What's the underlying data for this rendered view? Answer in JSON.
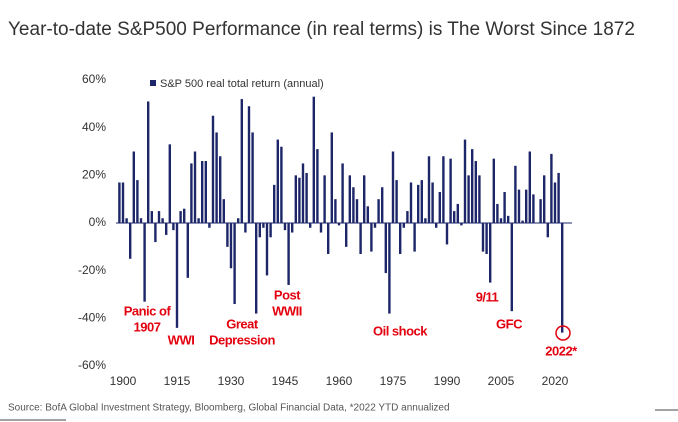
{
  "chart_data": {
    "type": "bar",
    "title": "Year-to-date S&P500 Performance (in real terms) is The Worst Since 1872",
    "legend": "S&P 500 real total return (annual)",
    "source": "Source: BofA Global Investment Strategy, Bloomberg, Global Financial Data, *2022 YTD annualized",
    "color": "#1c2668",
    "x": [
      1899,
      1900,
      1901,
      1902,
      1903,
      1904,
      1905,
      1906,
      1907,
      1908,
      1909,
      1910,
      1911,
      1912,
      1913,
      1914,
      1915,
      1916,
      1917,
      1918,
      1919,
      1920,
      1921,
      1922,
      1923,
      1924,
      1925,
      1926,
      1927,
      1928,
      1929,
      1930,
      1931,
      1932,
      1933,
      1934,
      1935,
      1936,
      1937,
      1938,
      1939,
      1940,
      1941,
      1942,
      1943,
      1944,
      1945,
      1946,
      1947,
      1948,
      1949,
      1950,
      1951,
      1952,
      1953,
      1954,
      1955,
      1956,
      1957,
      1958,
      1959,
      1960,
      1961,
      1962,
      1963,
      1964,
      1965,
      1966,
      1967,
      1968,
      1969,
      1970,
      1971,
      1972,
      1973,
      1974,
      1975,
      1976,
      1977,
      1978,
      1979,
      1980,
      1981,
      1982,
      1983,
      1984,
      1985,
      1986,
      1987,
      1988,
      1989,
      1990,
      1991,
      1992,
      1993,
      1994,
      1995,
      1996,
      1997,
      1998,
      1999,
      2000,
      2001,
      2002,
      2003,
      2004,
      2005,
      2006,
      2007,
      2008,
      2009,
      2010,
      2011,
      2012,
      2013,
      2014,
      2015,
      2016,
      2017,
      2018,
      2019,
      2020,
      2021,
      2022
    ],
    "values": [
      17,
      17,
      2,
      -15,
      30,
      18,
      2,
      -33,
      51,
      5,
      -8,
      5,
      2,
      -5,
      33,
      -3,
      -44,
      5,
      6,
      -23,
      25,
      30,
      2,
      26,
      26,
      -2,
      45,
      38,
      28,
      10,
      -10,
      -19,
      -34,
      2,
      52,
      -4,
      49,
      38,
      -38,
      -6,
      -2,
      -22,
      -6,
      16,
      35,
      32,
      -3,
      -26,
      -4,
      20,
      19,
      25,
      21,
      -2,
      53,
      31,
      -4,
      20,
      -13,
      38,
      10,
      -1,
      25,
      -10,
      20,
      15,
      10,
      -13,
      20,
      7,
      -12,
      -2,
      10,
      15,
      -21,
      -38,
      30,
      18,
      -13,
      -2,
      5,
      17,
      -12,
      16,
      18,
      2,
      28,
      17,
      -2,
      13,
      28,
      -9,
      27,
      5,
      8,
      -1,
      35,
      20,
      31,
      26,
      20,
      -12,
      -13,
      -25,
      27,
      8,
      2,
      13,
      3,
      -37,
      24,
      14,
      1,
      14,
      30,
      12,
      0,
      10,
      20,
      -6,
      29,
      17,
      21,
      -46
    ],
    "xlim": [
      1895,
      2030
    ],
    "xticks": [
      1900,
      1915,
      1930,
      1945,
      1960,
      1975,
      1990,
      2005,
      2020
    ],
    "ylim": [
      -60,
      60
    ],
    "yticks": [
      {
        "value": 60,
        "label": "60%"
      },
      {
        "value": 40,
        "label": "40%"
      },
      {
        "value": 20,
        "label": "20%"
      },
      {
        "value": 0,
        "label": "0%"
      },
      {
        "value": -20,
        "label": "-20%"
      },
      {
        "value": -40,
        "label": "-40%"
      },
      {
        "value": -60,
        "label": "-60%"
      }
    ],
    "annotations": [
      {
        "lines": [
          "Panic of",
          "1907"
        ]
      },
      {
        "lines": [
          "WWI"
        ]
      },
      {
        "lines": [
          "Great",
          "Depression"
        ]
      },
      {
        "lines": [
          "Post",
          "WWII"
        ]
      },
      {
        "lines": [
          "Oil shock"
        ]
      },
      {
        "lines": [
          "9/11"
        ]
      },
      {
        "lines": [
          "GFC"
        ]
      },
      {
        "lines": [
          "2022*"
        ]
      }
    ],
    "annotation_color": "#e3000f"
  }
}
